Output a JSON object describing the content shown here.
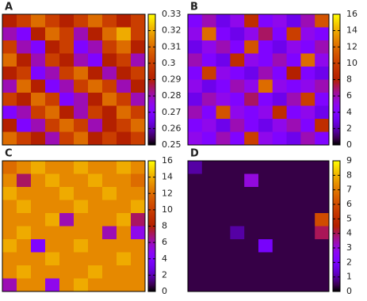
{
  "chart_data": [
    {
      "type": "heatmap",
      "title": "A",
      "colormap": "gnuplot",
      "clim": [
        0.25,
        0.33
      ],
      "yticks": [
        0.25,
        0.26,
        0.27,
        0.28,
        0.29,
        0.3,
        0.31,
        0.32,
        0.33
      ],
      "values": [
        [
          0.29,
          0.3,
          0.31,
          0.3,
          0.29,
          0.3,
          0.31,
          0.3,
          0.29,
          0.3
        ],
        [
          0.28,
          0.27,
          0.29,
          0.31,
          0.3,
          0.28,
          0.29,
          0.31,
          0.32,
          0.3
        ],
        [
          0.3,
          0.28,
          0.27,
          0.29,
          0.3,
          0.27,
          0.28,
          0.3,
          0.31,
          0.29
        ],
        [
          0.31,
          0.29,
          0.28,
          0.3,
          0.29,
          0.28,
          0.27,
          0.29,
          0.3,
          0.28
        ],
        [
          0.29,
          0.3,
          0.27,
          0.28,
          0.3,
          0.31,
          0.29,
          0.28,
          0.29,
          0.3
        ],
        [
          0.28,
          0.31,
          0.29,
          0.27,
          0.28,
          0.3,
          0.31,
          0.3,
          0.28,
          0.29
        ],
        [
          0.3,
          0.29,
          0.31,
          0.3,
          0.27,
          0.28,
          0.29,
          0.31,
          0.3,
          0.28
        ],
        [
          0.27,
          0.28,
          0.3,
          0.31,
          0.29,
          0.28,
          0.3,
          0.29,
          0.31,
          0.3
        ],
        [
          0.29,
          0.27,
          0.28,
          0.3,
          0.31,
          0.3,
          0.28,
          0.29,
          0.3,
          0.31
        ],
        [
          0.31,
          0.3,
          0.29,
          0.28,
          0.3,
          0.31,
          0.29,
          0.3,
          0.29,
          0.3
        ]
      ]
    },
    {
      "type": "heatmap",
      "title": "B",
      "colormap": "gnuplot",
      "clim": [
        0,
        16
      ],
      "yticks": [
        0,
        2,
        4,
        6,
        8,
        10,
        12,
        14,
        16
      ],
      "values": [
        [
          4,
          6,
          3,
          5,
          9,
          4,
          5,
          3,
          6,
          11
        ],
        [
          5,
          12,
          4,
          3,
          5,
          7,
          4,
          10,
          5,
          4
        ],
        [
          3,
          5,
          6,
          4,
          11,
          4,
          3,
          5,
          4,
          6
        ],
        [
          6,
          4,
          3,
          9,
          5,
          4,
          6,
          4,
          12,
          5
        ],
        [
          4,
          10,
          5,
          4,
          3,
          6,
          4,
          8,
          4,
          3
        ],
        [
          5,
          3,
          4,
          6,
          5,
          12,
          5,
          4,
          5,
          6
        ],
        [
          3,
          6,
          5,
          4,
          7,
          4,
          3,
          6,
          10,
          4
        ],
        [
          6,
          4,
          11,
          5,
          4,
          5,
          9,
          4,
          5,
          3
        ],
        [
          4,
          5,
          3,
          6,
          4,
          3,
          5,
          6,
          4,
          9
        ],
        [
          5,
          4,
          6,
          4,
          10,
          5,
          4,
          3,
          6,
          4
        ]
      ]
    },
    {
      "type": "heatmap",
      "title": "C",
      "colormap": "gnuplot",
      "clim": [
        0,
        16
      ],
      "yticks": [
        0,
        2,
        4,
        6,
        8,
        10,
        12,
        14,
        16
      ],
      "values": [
        [
          12,
          13,
          14,
          13,
          13,
          14,
          13,
          13,
          14,
          13
        ],
        [
          13,
          7,
          13,
          14,
          13,
          13,
          14,
          13,
          13,
          12
        ],
        [
          14,
          13,
          13,
          13,
          14,
          13,
          13,
          14,
          13,
          13
        ],
        [
          13,
          14,
          13,
          13,
          13,
          14,
          13,
          13,
          13,
          14
        ],
        [
          13,
          13,
          13,
          14,
          6,
          13,
          13,
          13,
          14,
          7
        ],
        [
          13,
          14,
          13,
          13,
          13,
          13,
          13,
          6,
          13,
          5
        ],
        [
          14,
          13,
          4,
          13,
          13,
          14,
          13,
          13,
          13,
          13
        ],
        [
          13,
          13,
          13,
          14,
          13,
          13,
          13,
          13,
          14,
          13
        ],
        [
          13,
          14,
          13,
          13,
          13,
          13,
          14,
          13,
          13,
          13
        ],
        [
          6,
          13,
          13,
          5,
          13,
          14,
          13,
          13,
          13,
          13
        ]
      ]
    },
    {
      "type": "heatmap",
      "title": "D",
      "colormap": "gnuplot",
      "clim": [
        0,
        9
      ],
      "yticks": [
        0,
        1,
        2,
        3,
        4,
        5,
        6,
        7,
        8,
        9
      ],
      "values": [
        [
          1,
          0.4,
          0.4,
          0.4,
          0.4,
          0.4,
          0.4,
          0.4,
          0.4,
          0.4
        ],
        [
          0.4,
          0.4,
          0.4,
          0.4,
          3,
          0.4,
          0.4,
          0.4,
          0.4,
          0.4
        ],
        [
          0.4,
          0.4,
          0.4,
          0.4,
          0.4,
          0.4,
          0.4,
          0.4,
          0.4,
          0.4
        ],
        [
          0.4,
          0.4,
          0.4,
          0.4,
          0.4,
          0.4,
          0.4,
          0.4,
          0.4,
          0.4
        ],
        [
          0.4,
          0.4,
          0.4,
          0.4,
          0.4,
          0.4,
          0.4,
          0.4,
          0.4,
          6
        ],
        [
          0.4,
          0.4,
          0.4,
          1,
          0.4,
          0.4,
          0.4,
          0.4,
          0.4,
          4
        ],
        [
          0.4,
          0.4,
          0.4,
          0.4,
          0.4,
          2,
          0.4,
          0.4,
          0.4,
          0.4
        ],
        [
          0.4,
          0.4,
          0.4,
          0.4,
          0.4,
          0.4,
          0.4,
          0.4,
          0.4,
          0.4
        ],
        [
          0.4,
          0.4,
          0.4,
          0.4,
          0.4,
          0.4,
          0.4,
          0.4,
          0.4,
          0.4
        ],
        [
          0.4,
          0.4,
          0.4,
          0.4,
          0.4,
          0.4,
          0.4,
          0.4,
          0.4,
          0.4
        ]
      ]
    }
  ]
}
